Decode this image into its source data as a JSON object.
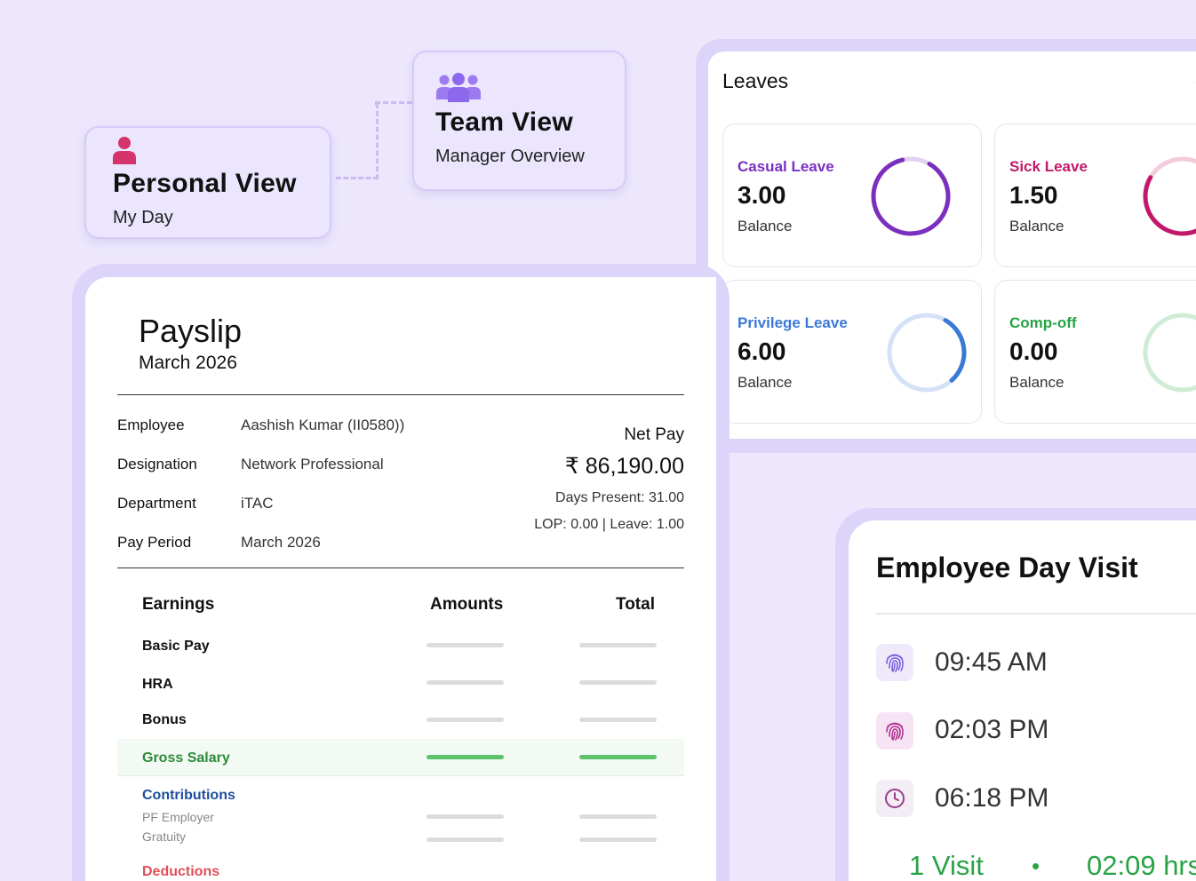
{
  "views": {
    "personal": {
      "title": "Personal View",
      "subtitle": "My Day"
    },
    "team": {
      "title": "Team View",
      "subtitle": "Manager Overview"
    }
  },
  "leaves": {
    "title": "Leaves",
    "label_balance": "Balance",
    "items": [
      {
        "name": "Casual Leave",
        "value": "3.00",
        "color": "#7b2fbf",
        "fill": 0.88
      },
      {
        "name": "Sick Leave",
        "value": "1.50",
        "color": "#c2186b",
        "fill": 0.75
      },
      {
        "name": "Privilege Leave",
        "value": "6.00",
        "color": "#3a78d8",
        "fill": 0.3
      },
      {
        "name": "Comp-off",
        "value": "0.00",
        "color": "#27a344",
        "fill": 0
      }
    ]
  },
  "payslip": {
    "title": "Payslip",
    "month": "March 2026",
    "info": [
      {
        "label": "Employee",
        "value": "Aashish Kumar (II0580))"
      },
      {
        "label": "Designation",
        "value": "Network Professional"
      },
      {
        "label": "Department",
        "value": "iTAC"
      },
      {
        "label": "Pay Period",
        "value": "March 2026"
      }
    ],
    "net_pay_label": "Net Pay",
    "net_pay": "₹ 86,190.00",
    "days_present": "Days Present: 31.00",
    "lop_leave": "LOP: 0.00 | Leave: 1.00",
    "columns": {
      "earnings": "Earnings",
      "amounts": "Amounts",
      "total": "Total"
    },
    "rows": [
      "Basic Pay",
      "HRA",
      "Bonus"
    ],
    "gross": "Gross Salary",
    "contributions": {
      "title": "Contributions",
      "items": [
        "PF Employer",
        "Gratuity"
      ]
    },
    "deductions": "Deductions"
  },
  "visit": {
    "title": "Employee Day Visit",
    "entries": [
      {
        "time": "09:45 AM",
        "icon": "fingerprint-icon"
      },
      {
        "time": "02:03 PM",
        "icon": "fingerprint-icon"
      },
      {
        "time": "06:18 PM",
        "icon": "clock-icon"
      }
    ],
    "summary_visits": "1 Visit",
    "summary_dot": "•",
    "summary_hours": "02:09 hrs"
  },
  "colors": {
    "background": "#ece7fd",
    "accent_purple": "#7b2fbf",
    "green": "#27a344",
    "contributions_blue": "#1f4fa0",
    "deductions_red": "#e0505a"
  }
}
